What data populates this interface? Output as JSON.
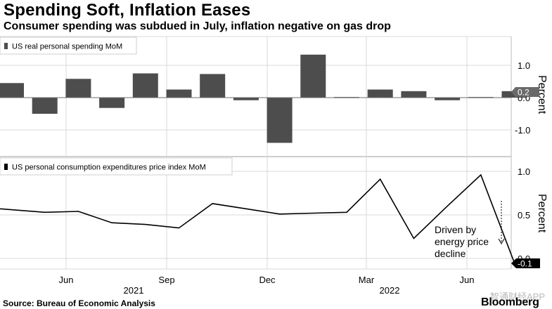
{
  "title": "Spending Soft, Inflation Eases",
  "subtitle": "Consumer spending was subdued in July, inflation negative on gas drop",
  "source": "Source: Bureau of Economic Analysis",
  "brand": "Bloomberg",
  "watermark": "智通财经APP",
  "colors": {
    "bar": "#4d4d4d",
    "line": "#000000",
    "grid": "#d9d9d9",
    "badge": "#000000"
  },
  "x_axis": {
    "month_labels": [
      "Jun",
      "Sep",
      "Dec",
      "Mar",
      "Jun"
    ],
    "year_labels": [
      "2021",
      "2022"
    ]
  },
  "chart_data": [
    {
      "type": "bar",
      "legend": "US real personal spending MoM",
      "ylabel": "Percent",
      "categories": [
        "2021-04",
        "2021-05",
        "2021-06",
        "2021-07",
        "2021-08",
        "2021-09",
        "2021-10",
        "2021-11",
        "2021-12",
        "2022-01",
        "2022-02",
        "2022-03",
        "2022-04",
        "2022-05",
        "2022-06",
        "2022-07"
      ],
      "values": [
        0.45,
        -0.5,
        0.58,
        -0.32,
        0.75,
        0.25,
        0.73,
        -0.08,
        -1.4,
        1.33,
        0.02,
        0.25,
        0.2,
        -0.08,
        0.02,
        0.2
      ],
      "ylim": [
        -1.65,
        1.8
      ],
      "yticks": [
        "1.0",
        "0.0",
        "-1.0"
      ],
      "last_value_label": "0.2",
      "grid": true
    },
    {
      "type": "line",
      "legend": "US personal consumption expenditures  price index MoM",
      "ylabel": "Percent",
      "x": [
        "2021-04",
        "2021-05",
        "2021-06",
        "2021-07",
        "2021-08",
        "2021-09",
        "2021-10",
        "2021-11",
        "2021-12",
        "2022-01",
        "2022-02",
        "2022-03",
        "2022-04",
        "2022-05",
        "2022-06",
        "2022-07"
      ],
      "values": [
        0.57,
        0.53,
        0.54,
        0.41,
        0.39,
        0.35,
        0.63,
        0.57,
        0.51,
        0.52,
        0.53,
        0.91,
        0.23,
        0.6,
        0.96,
        -0.05
      ],
      "ylim": [
        -0.08,
        1.1
      ],
      "yticks": [
        "1.0",
        "0.5",
        "0.0"
      ],
      "last_value_label": "-0.1",
      "annotation": [
        "Driven by",
        "energy price",
        "decline"
      ],
      "grid": true
    }
  ]
}
